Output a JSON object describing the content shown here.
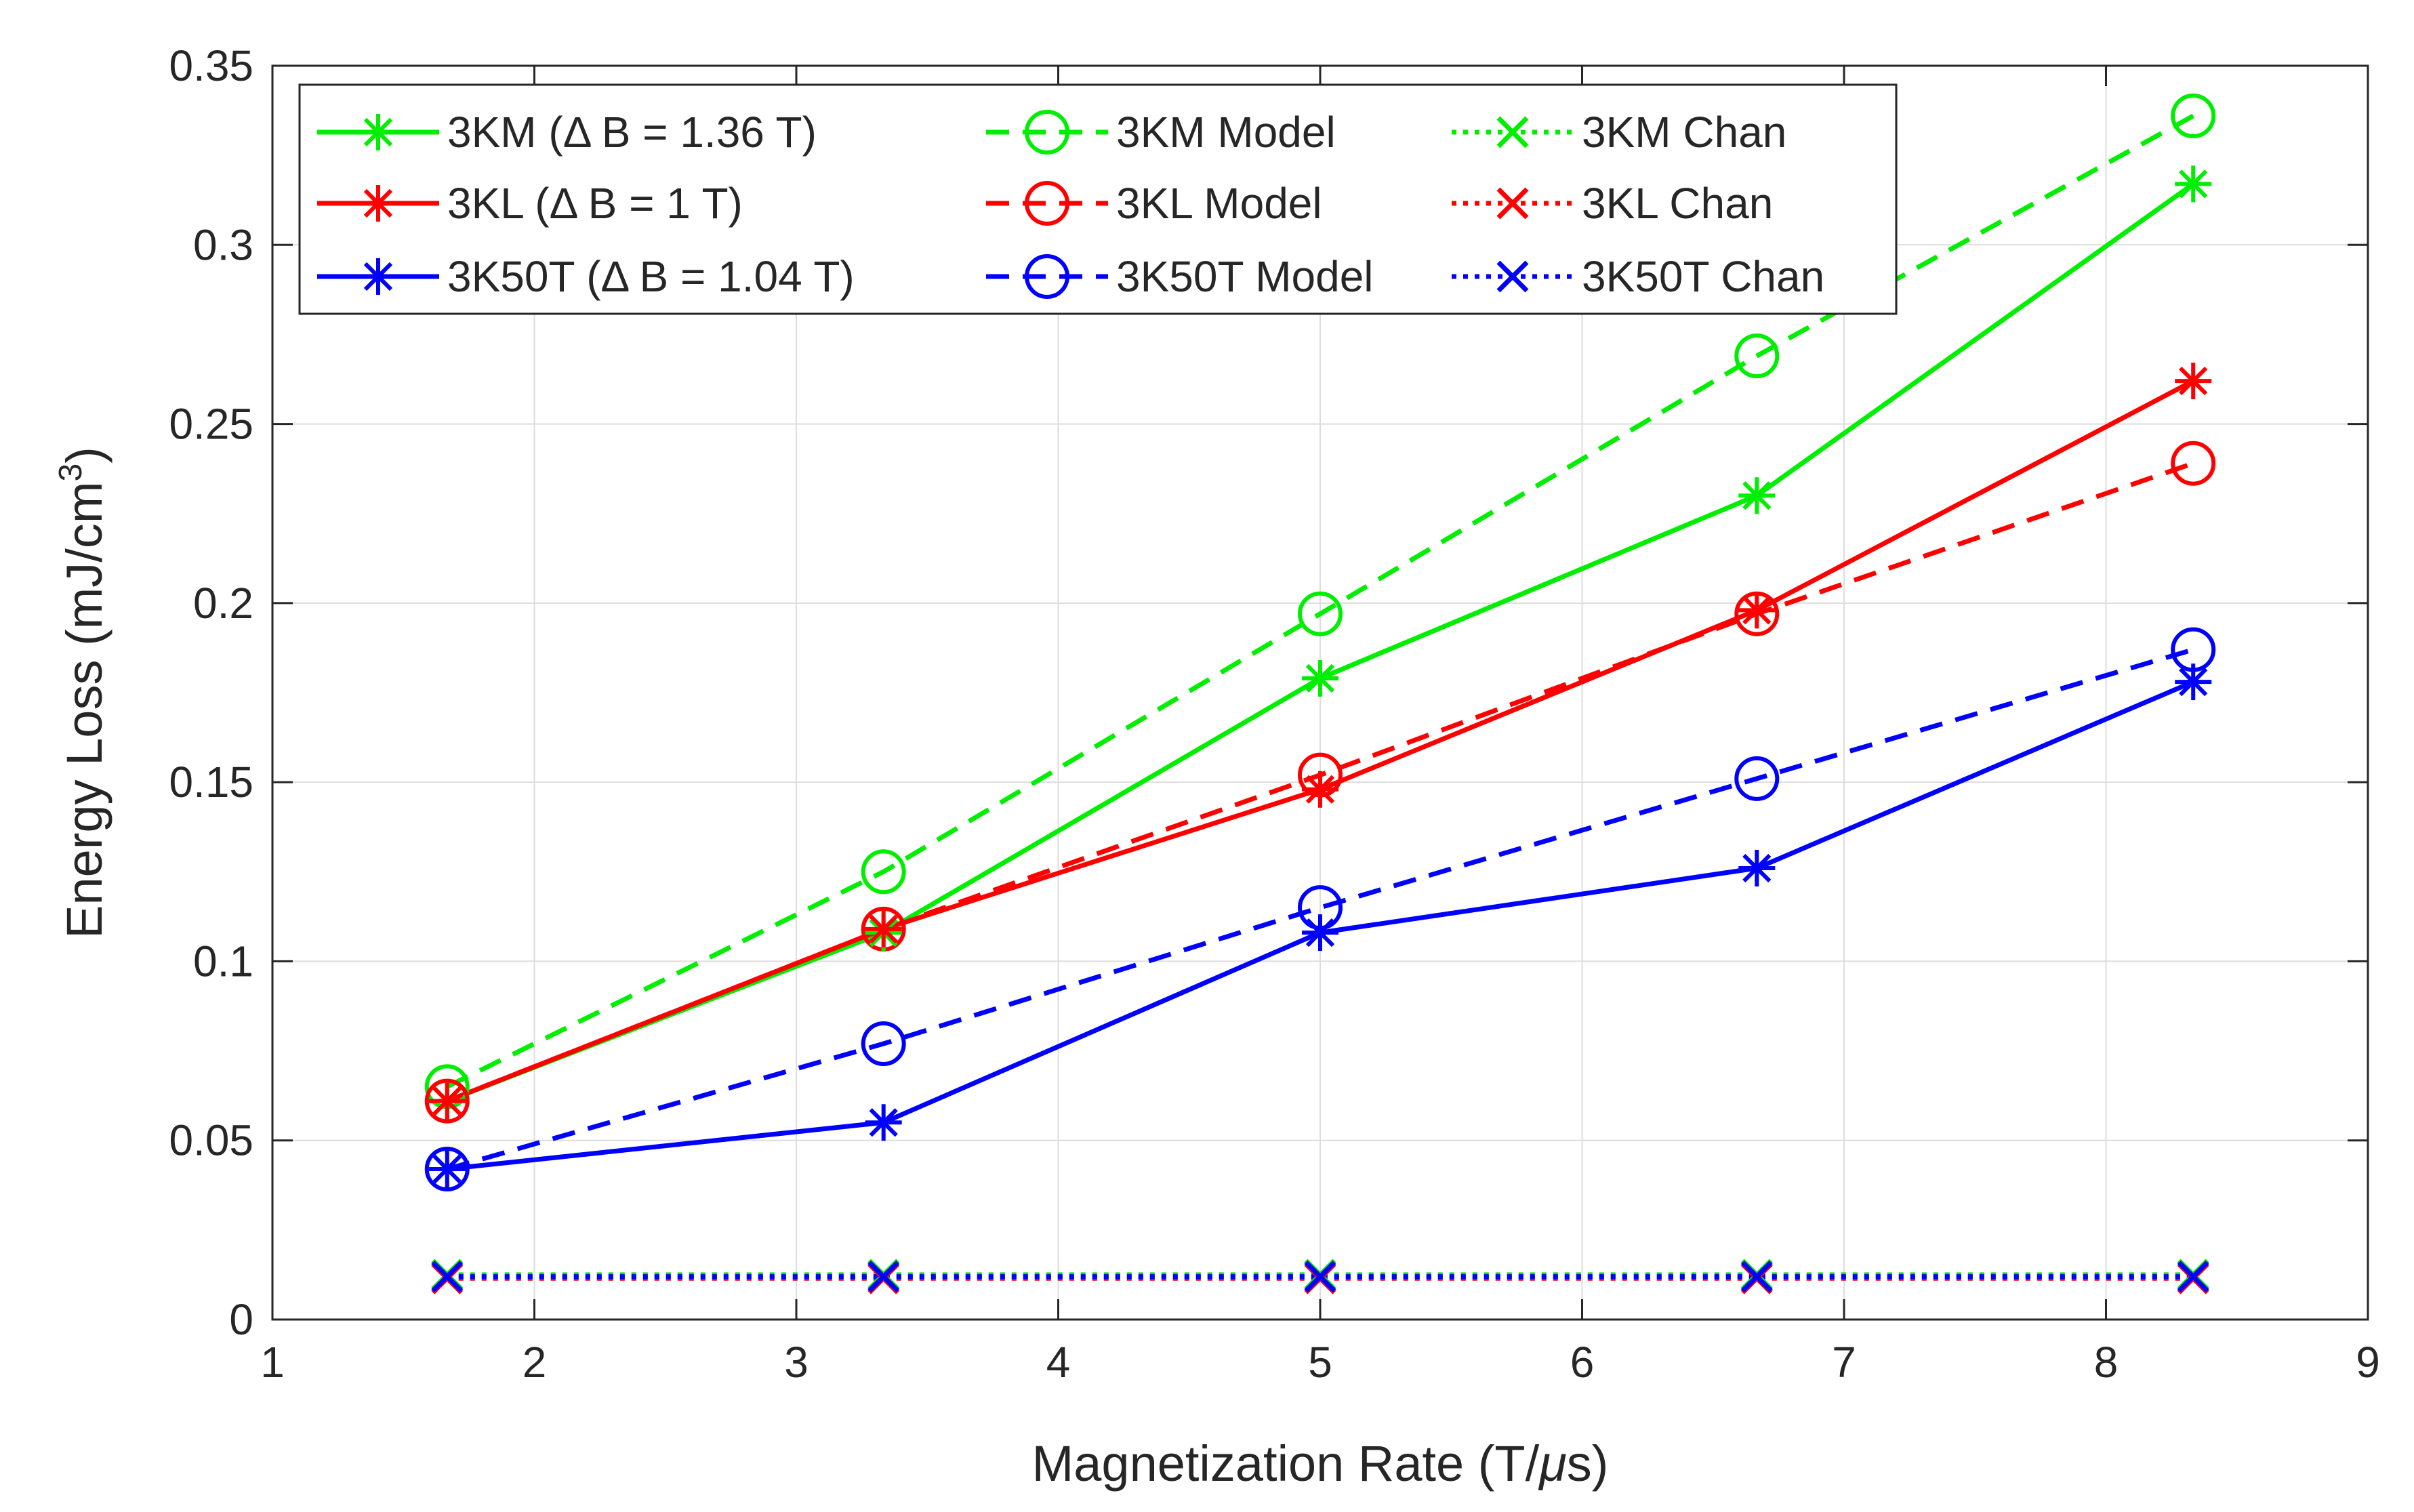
{
  "chart_data": {
    "type": "line",
    "title": "",
    "xlabel_main": "Magnetization Rate (T/",
    "xlabel_mu": "μ",
    "xlabel_tail": "s)",
    "ylabel_main": "Energy Loss (mJ/cm",
    "ylabel_sup": "3",
    "ylabel_tail": ")",
    "xlim": [
      1,
      9
    ],
    "ylim": [
      0,
      0.35
    ],
    "grid": true,
    "legend_position": "top-left",
    "x_ticks": [
      1,
      2,
      3,
      4,
      5,
      6,
      7,
      8,
      9
    ],
    "x_tick_labels": [
      "1",
      "2",
      "3",
      "4",
      "5",
      "6",
      "7",
      "8",
      "9"
    ],
    "y_ticks": [
      0,
      0.05,
      0.1,
      0.15,
      0.2,
      0.25,
      0.3,
      0.35
    ],
    "y_tick_labels": [
      "0",
      "0.05",
      "0.1",
      "0.15",
      "0.2",
      "0.25",
      "0.3",
      "0.35"
    ],
    "x": [
      1.667,
      3.333,
      5.0,
      6.667,
      8.333
    ],
    "series": [
      {
        "name": "3KM (Δ B = 1.36 T)",
        "label_a": "3KM (",
        "label_delta": "Δ",
        "label_b": " B = 1.36 T)",
        "color": "#00ee00",
        "dash": "solid",
        "marker": "asterisk",
        "values": [
          0.061,
          0.108,
          0.179,
          0.23,
          0.317
        ]
      },
      {
        "name": "3KL (Δ B = 1 T)",
        "label_a": "3KL (",
        "label_delta": "Δ",
        "label_b": " B = 1 T)",
        "color": "#ff0000",
        "dash": "solid",
        "marker": "asterisk",
        "values": [
          0.061,
          0.109,
          0.148,
          0.198,
          0.262
        ]
      },
      {
        "name": "3K50T (Δ B = 1.04 T)",
        "label_a": "3K50T (",
        "label_delta": "Δ",
        "label_b": " B = 1.04 T)",
        "color": "#0000ff",
        "dash": "solid",
        "marker": "asterisk",
        "values": [
          0.042,
          0.055,
          0.108,
          0.126,
          0.178
        ]
      },
      {
        "name": "3KM Model",
        "label_a": "3KM Model",
        "color": "#00ee00",
        "dash": "dashed",
        "marker": "circle",
        "values": [
          0.065,
          0.125,
          0.197,
          0.269,
          0.336
        ]
      },
      {
        "name": "3KL Model",
        "label_a": "3KL Model",
        "color": "#ff0000",
        "dash": "dashed",
        "marker": "circle",
        "values": [
          0.061,
          0.109,
          0.152,
          0.197,
          0.239
        ]
      },
      {
        "name": "3K50T Model",
        "label_a": "3K50T Model",
        "color": "#0000ff",
        "dash": "dashed",
        "marker": "circle",
        "values": [
          0.042,
          0.077,
          0.115,
          0.151,
          0.187
        ]
      },
      {
        "name": "3KM Chan",
        "label_a": "3KM Chan",
        "color": "#00ee00",
        "dash": "dotted",
        "marker": "x",
        "values": [
          0.0125,
          0.0125,
          0.0125,
          0.0125,
          0.0125
        ]
      },
      {
        "name": "3KL Chan",
        "label_a": "3KL Chan",
        "color": "#ff0000",
        "dash": "dotted",
        "marker": "x",
        "values": [
          0.0115,
          0.0115,
          0.0115,
          0.0115,
          0.0115
        ]
      },
      {
        "name": "3K50T Chan",
        "label_a": "3K50T Chan",
        "color": "#0000ff",
        "dash": "dotted",
        "marker": "x",
        "values": [
          0.012,
          0.012,
          0.012,
          0.012,
          0.012
        ]
      }
    ]
  }
}
